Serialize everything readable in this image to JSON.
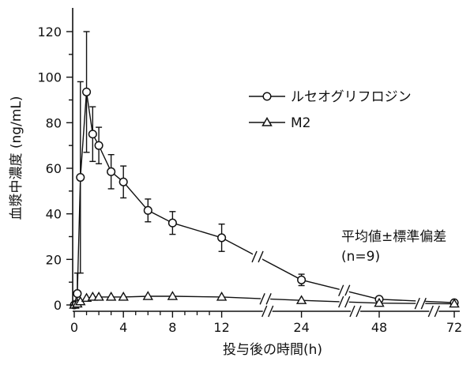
{
  "chart_data": {
    "type": "line",
    "ylabel": "血漿中濃度 (ng/mL)",
    "xlabel": "投与後の時間(h)",
    "ylim": [
      0,
      130
    ],
    "yticks": [
      0,
      20,
      40,
      60,
      80,
      100,
      120
    ],
    "xticks": [
      0,
      4,
      8,
      12,
      24,
      48,
      72
    ],
    "x_axis_breaks": true,
    "grid": false,
    "legend_position": "top-right",
    "note": [
      "平均値±標準偏差",
      "(n=9)"
    ],
    "series": [
      {
        "name": "ルセオグリフロジン",
        "marker": "circle",
        "x": [
          0,
          0.25,
          0.5,
          1,
          1.5,
          2,
          3,
          4,
          6,
          8,
          12,
          24,
          48,
          72
        ],
        "y": [
          0,
          5,
          56,
          93.5,
          75,
          70,
          58.5,
          54,
          41.5,
          36,
          29.5,
          11,
          2.5,
          1
        ],
        "err": [
          0,
          9,
          42,
          26.5,
          12,
          8,
          7.5,
          7,
          5,
          5,
          6,
          2.5,
          0,
          0
        ]
      },
      {
        "name": "M2",
        "marker": "triangle",
        "x": [
          0,
          0.25,
          0.5,
          1,
          1.5,
          2,
          3,
          4,
          6,
          8,
          12,
          24,
          48,
          72
        ],
        "y": [
          0,
          0.5,
          1.5,
          3,
          3.5,
          3.5,
          3.5,
          3.5,
          3.8,
          3.8,
          3.5,
          2,
          0.8,
          0.5
        ],
        "err": [
          0,
          0,
          0,
          0,
          0,
          0,
          0,
          0,
          0,
          0,
          0,
          0,
          0,
          0
        ]
      }
    ]
  },
  "colors": {
    "ink": "#111111",
    "marker_fill": "#ffffff"
  }
}
